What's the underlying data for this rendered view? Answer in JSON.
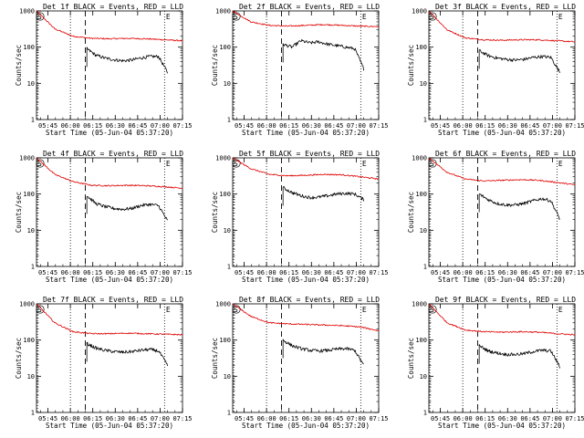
{
  "colors": {
    "background": "#ffffff",
    "axes": "#000000",
    "events": "#000000",
    "lld": "#e00000"
  },
  "shared": {
    "ylabel": "Counts/sec",
    "xlabel": "Start Time (05-Jun-04 05:37:20)",
    "x_ticks": [
      "05:45",
      "06:00",
      "06:15",
      "06:30",
      "06:45",
      "07:00",
      "07:15"
    ],
    "y_ticks": [
      "1",
      "10",
      "100",
      "1000"
    ],
    "corner_mark": "S",
    "end_mark": "E"
  },
  "chart_data": [
    {
      "type": "line",
      "title": "Det 1f BLACK = Events, RED = LLD",
      "series": [
        {
          "name": "LLD",
          "start": "05:37:20",
          "end": "07:15",
          "values": [
            1000,
            320,
            200,
            175,
            170,
            175,
            170,
            160,
            150
          ]
        },
        {
          "name": "Events",
          "start": "06:11",
          "end": "07:05",
          "values": [
            90,
            60,
            50,
            45,
            42,
            44,
            50,
            55,
            55,
            20
          ]
        }
      ],
      "xlim": [
        "05:37:20",
        "07:15"
      ],
      "ylim": [
        1,
        1000
      ],
      "ylog": true,
      "dotted_lines": [
        "05:38",
        "06:00",
        "07:03"
      ],
      "dashed_lines": [
        "06:10"
      ]
    },
    {
      "type": "line",
      "title": "Det 2f BLACK = Events, RED = LLD",
      "series": [
        {
          "name": "LLD",
          "start": "05:37:20",
          "end": "07:15",
          "values": [
            1000,
            500,
            400,
            380,
            400,
            420,
            400,
            380,
            370
          ]
        },
        {
          "name": "Events",
          "start": "06:11",
          "end": "07:05",
          "values": [
            120,
            100,
            150,
            130,
            140,
            120,
            110,
            100,
            90,
            25
          ]
        }
      ],
      "xlim": [
        "05:37:20",
        "07:15"
      ],
      "ylim": [
        1,
        1000
      ],
      "ylog": true,
      "dotted_lines": [
        "05:38",
        "06:00",
        "07:03"
      ],
      "dashed_lines": [
        "06:10"
      ]
    },
    {
      "type": "line",
      "title": "Det 3f BLACK = Events, RED = LLD",
      "series": [
        {
          "name": "LLD",
          "start": "05:37:20",
          "end": "07:15",
          "values": [
            1000,
            300,
            180,
            160,
            155,
            160,
            160,
            150,
            140
          ]
        },
        {
          "name": "Events",
          "start": "06:11",
          "end": "07:05",
          "values": [
            80,
            58,
            50,
            46,
            44,
            46,
            52,
            55,
            52,
            20
          ]
        }
      ],
      "xlim": [
        "05:37:20",
        "07:15"
      ],
      "ylim": [
        1,
        1000
      ],
      "ylog": true,
      "dotted_lines": [
        "05:38",
        "06:00",
        "07:03"
      ],
      "dashed_lines": [
        "06:10"
      ]
    },
    {
      "type": "line",
      "title": "Det 4f BLACK = Events, RED = LLD",
      "series": [
        {
          "name": "LLD",
          "start": "05:37:20",
          "end": "07:15",
          "values": [
            1000,
            350,
            220,
            175,
            170,
            175,
            170,
            160,
            145
          ]
        },
        {
          "name": "Events",
          "start": "06:11",
          "end": "07:05",
          "values": [
            90,
            55,
            45,
            40,
            38,
            40,
            48,
            52,
            48,
            18
          ]
        }
      ],
      "xlim": [
        "05:37:20",
        "07:15"
      ],
      "ylim": [
        1,
        1000
      ],
      "ylog": true,
      "dotted_lines": [
        "05:38",
        "06:00",
        "07:03"
      ],
      "dashed_lines": [
        "06:10"
      ]
    },
    {
      "type": "line",
      "title": "Det 5f BLACK = Events, RED = LLD",
      "series": [
        {
          "name": "LLD",
          "start": "05:37:20",
          "end": "07:15",
          "values": [
            1000,
            500,
            350,
            320,
            330,
            350,
            340,
            300,
            260
          ]
        },
        {
          "name": "Events",
          "start": "06:11",
          "end": "07:05",
          "values": [
            150,
            110,
            90,
            80,
            82,
            90,
            100,
            105,
            100,
            70
          ]
        }
      ],
      "xlim": [
        "05:37:20",
        "07:15"
      ],
      "ylim": [
        1,
        1000
      ],
      "ylog": true,
      "dotted_lines": [
        "05:38",
        "06:00",
        "07:03"
      ],
      "dashed_lines": [
        "06:10"
      ]
    },
    {
      "type": "line",
      "title": "Det 6f BLACK = Events, RED = LLD",
      "series": [
        {
          "name": "LLD",
          "start": "05:37:20",
          "end": "07:15",
          "values": [
            1000,
            400,
            260,
            230,
            240,
            250,
            240,
            210,
            180
          ]
        },
        {
          "name": "Events",
          "start": "06:11",
          "end": "07:05",
          "values": [
            100,
            70,
            55,
            50,
            50,
            55,
            65,
            75,
            65,
            20
          ]
        }
      ],
      "xlim": [
        "05:37:20",
        "07:15"
      ],
      "ylim": [
        1,
        1000
      ],
      "ylog": true,
      "dotted_lines": [
        "05:38",
        "06:00",
        "07:03"
      ],
      "dashed_lines": [
        "06:10"
      ]
    },
    {
      "type": "line",
      "title": "Det 7f BLACK = Events, RED = LLD",
      "series": [
        {
          "name": "LLD",
          "start": "05:37:20",
          "end": "07:15",
          "values": [
            1000,
            300,
            170,
            150,
            150,
            155,
            150,
            145,
            140
          ]
        },
        {
          "name": "Events",
          "start": "06:11",
          "end": "07:05",
          "values": [
            80,
            60,
            52,
            48,
            46,
            48,
            52,
            55,
            50,
            20
          ]
        }
      ],
      "xlim": [
        "05:37:20",
        "07:15"
      ],
      "ylim": [
        1,
        1000
      ],
      "ylog": true,
      "dotted_lines": [
        "05:38",
        "06:00",
        "07:03"
      ],
      "dashed_lines": [
        "06:10"
      ]
    },
    {
      "type": "line",
      "title": "Det 8f BLACK = Events, RED = LLD",
      "series": [
        {
          "name": "LLD",
          "start": "05:37:20",
          "end": "07:15",
          "values": [
            1000,
            450,
            300,
            280,
            270,
            260,
            250,
            230,
            180
          ]
        },
        {
          "name": "Events",
          "start": "06:11",
          "end": "07:05",
          "values": [
            100,
            70,
            58,
            52,
            50,
            52,
            56,
            58,
            52,
            20
          ]
        }
      ],
      "xlim": [
        "05:37:20",
        "07:15"
      ],
      "ylim": [
        1,
        1000
      ],
      "ylog": true,
      "dotted_lines": [
        "05:38",
        "06:00",
        "07:03"
      ],
      "dashed_lines": [
        "06:10"
      ]
    },
    {
      "type": "line",
      "title": "Det 9f BLACK = Events, RED = LLD",
      "series": [
        {
          "name": "LLD",
          "start": "05:37:20",
          "end": "07:15",
          "values": [
            1000,
            300,
            190,
            170,
            165,
            170,
            165,
            150,
            140
          ]
        },
        {
          "name": "Events",
          "start": "06:11",
          "end": "07:05",
          "values": [
            70,
            50,
            44,
            40,
            40,
            42,
            48,
            52,
            50,
            18
          ]
        }
      ],
      "xlim": [
        "05:37:20",
        "07:15"
      ],
      "ylim": [
        1,
        1000
      ],
      "ylog": true,
      "dotted_lines": [
        "05:38",
        "06:00",
        "07:03"
      ],
      "dashed_lines": [
        "06:10"
      ]
    }
  ]
}
